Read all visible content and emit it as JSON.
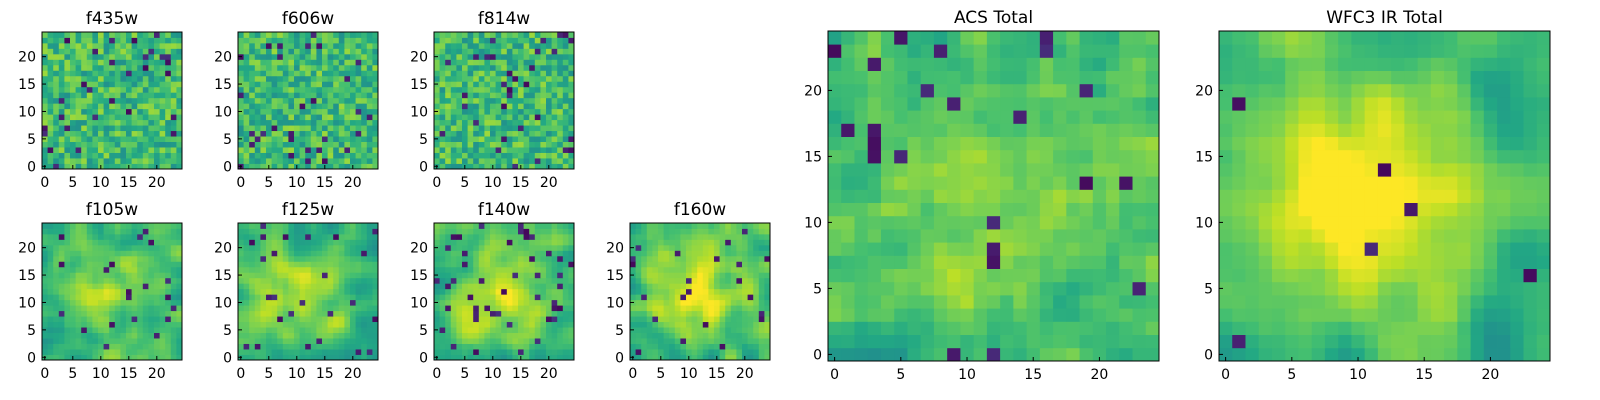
{
  "chart_data": {
    "type": "heatmap",
    "colormap": "viridis",
    "ylim": [
      -0.5,
      24.5
    ],
    "xlim": [
      -0.5,
      24.5
    ],
    "panels": [
      {
        "id": "f435w",
        "title": "f435w",
        "xticks": [
          0,
          5,
          10,
          15,
          20
        ],
        "yticks": [
          0,
          5,
          10,
          15,
          20
        ],
        "grid_size": 25,
        "seed": 11,
        "smoothness": 0.0,
        "center_boost": 0.0,
        "dark_fraction": 0.05
      },
      {
        "id": "f606w",
        "title": "f606w",
        "xticks": [
          0,
          5,
          10,
          15,
          20
        ],
        "yticks": [
          0,
          5,
          10,
          15,
          20
        ],
        "grid_size": 25,
        "seed": 23,
        "smoothness": 0.0,
        "center_boost": 0.0,
        "dark_fraction": 0.04
      },
      {
        "id": "f814w",
        "title": "f814w",
        "xticks": [
          0,
          5,
          10,
          15,
          20
        ],
        "yticks": [
          0,
          5,
          10,
          15,
          20
        ],
        "grid_size": 25,
        "seed": 37,
        "smoothness": 0.0,
        "center_boost": 0.0,
        "dark_fraction": 0.05
      },
      {
        "id": "f105w",
        "title": "f105w",
        "xticks": [
          0,
          5,
          10,
          15,
          20
        ],
        "yticks": [
          0,
          5,
          10,
          15,
          20
        ],
        "grid_size": 25,
        "seed": 41,
        "smoothness": 0.5,
        "center_boost": 0.25,
        "dark_fraction": 0.03
      },
      {
        "id": "f125w",
        "title": "f125w",
        "xticks": [
          0,
          5,
          10,
          15,
          20
        ],
        "yticks": [
          0,
          5,
          10,
          15,
          20
        ],
        "grid_size": 25,
        "seed": 53,
        "smoothness": 0.5,
        "center_boost": 0.2,
        "dark_fraction": 0.05
      },
      {
        "id": "f140w",
        "title": "f140w",
        "xticks": [
          0,
          5,
          10,
          15,
          20
        ],
        "yticks": [
          0,
          5,
          10,
          15,
          20
        ],
        "grid_size": 25,
        "seed": 67,
        "smoothness": 0.5,
        "center_boost": 0.25,
        "dark_fraction": 0.05
      },
      {
        "id": "f160w",
        "title": "f160w",
        "xticks": [
          0,
          5,
          10,
          15,
          20
        ],
        "yticks": [
          0,
          5,
          10,
          15,
          20
        ],
        "grid_size": 25,
        "seed": 79,
        "smoothness": 0.6,
        "center_boost": 0.35,
        "dark_fraction": 0.05
      },
      {
        "id": "acs_total",
        "title": "ACS Total",
        "xticks": [
          0,
          5,
          10,
          15,
          20
        ],
        "yticks": [
          0,
          5,
          10,
          15,
          20
        ],
        "grid_size": 25,
        "seed": 97,
        "smoothness": 0.2,
        "center_boost": 0.1,
        "dark_fraction": 0.04
      },
      {
        "id": "wfc3_ir_total",
        "title": "WFC3 IR Total",
        "xticks": [
          0,
          5,
          10,
          15,
          20
        ],
        "yticks": [
          0,
          5,
          10,
          15,
          20
        ],
        "grid_size": 25,
        "seed": 131,
        "smoothness": 0.75,
        "center_boost": 0.45,
        "dark_fraction": 0.02
      }
    ]
  }
}
